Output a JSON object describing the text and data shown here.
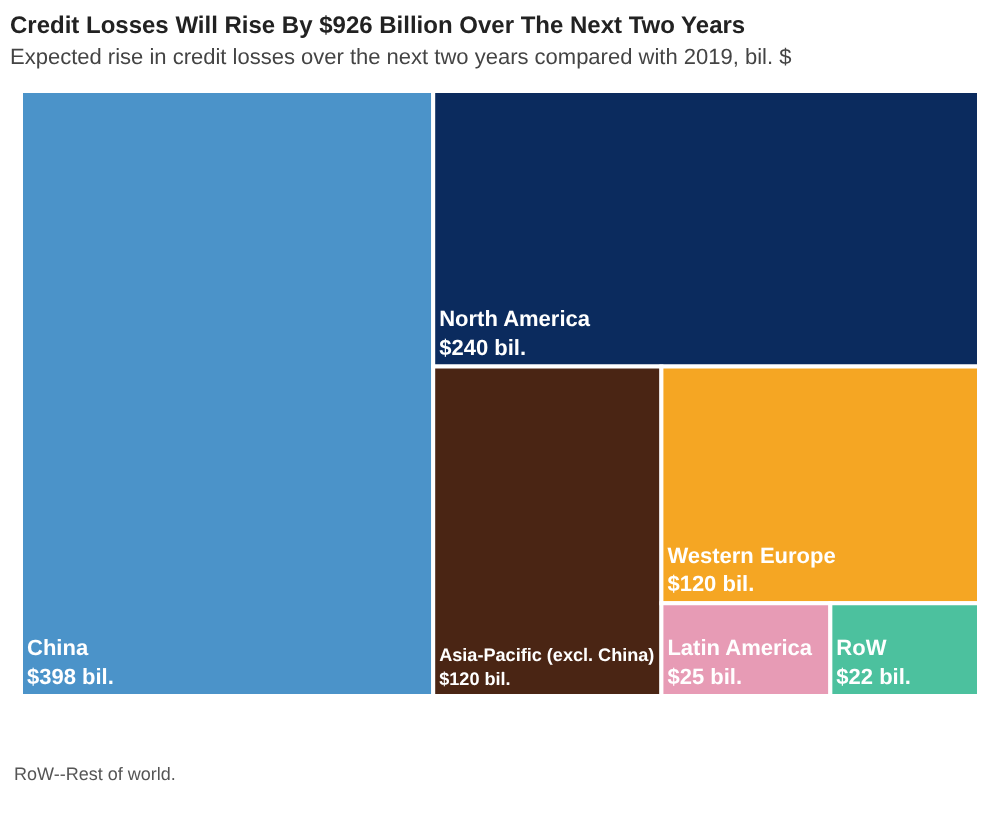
{
  "chart_data": {
    "type": "other",
    "title": "Credit Losses Will Rise By $926 Billion Over The Next Two Years",
    "subtitle": "Expected rise in credit losses over the next two years compared with 2019, bil. $",
    "categories": [
      "China",
      "North America",
      "Asia-Pacific (excl. China)",
      "Western Europe",
      "Latin America",
      "RoW"
    ],
    "values": [
      398,
      240,
      120,
      120,
      25,
      22
    ],
    "value_labels": [
      "$398 bil.",
      "$240 bil.",
      "$120 bil.",
      "$120 bil.",
      "$25 bil.",
      "$22 bil."
    ],
    "colors": [
      "#4b93c9",
      "#0b2b5e",
      "#4a2514",
      "#f5a623",
      "#e79bb5",
      "#4cc19e"
    ],
    "annotations": [
      "RoW--Rest of world."
    ]
  }
}
